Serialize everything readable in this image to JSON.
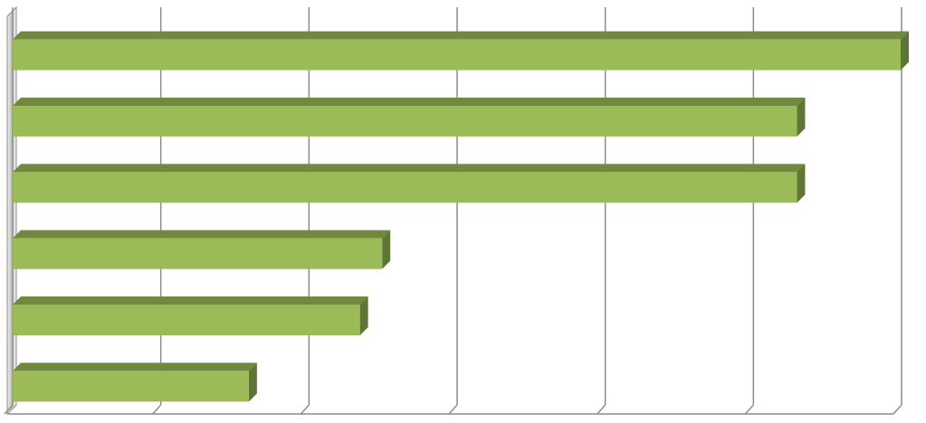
{
  "chart_data": {
    "type": "bar",
    "orientation": "horizontal",
    "style": "3d",
    "title": "",
    "xlabel": "",
    "ylabel": "",
    "categories": [
      "",
      "",
      "",
      "",
      "",
      ""
    ],
    "values": [
      6.0,
      5.3,
      5.3,
      2.5,
      2.35,
      1.6
    ],
    "xlim": [
      0,
      6
    ],
    "grid": "vertical",
    "legend": "none",
    "colors": {
      "bar_front": "#9bbb59",
      "bar_top": "#71893f",
      "bar_side": "#5f7535",
      "grid": "#8c8c8c",
      "wall": "#d9d9d9"
    }
  }
}
